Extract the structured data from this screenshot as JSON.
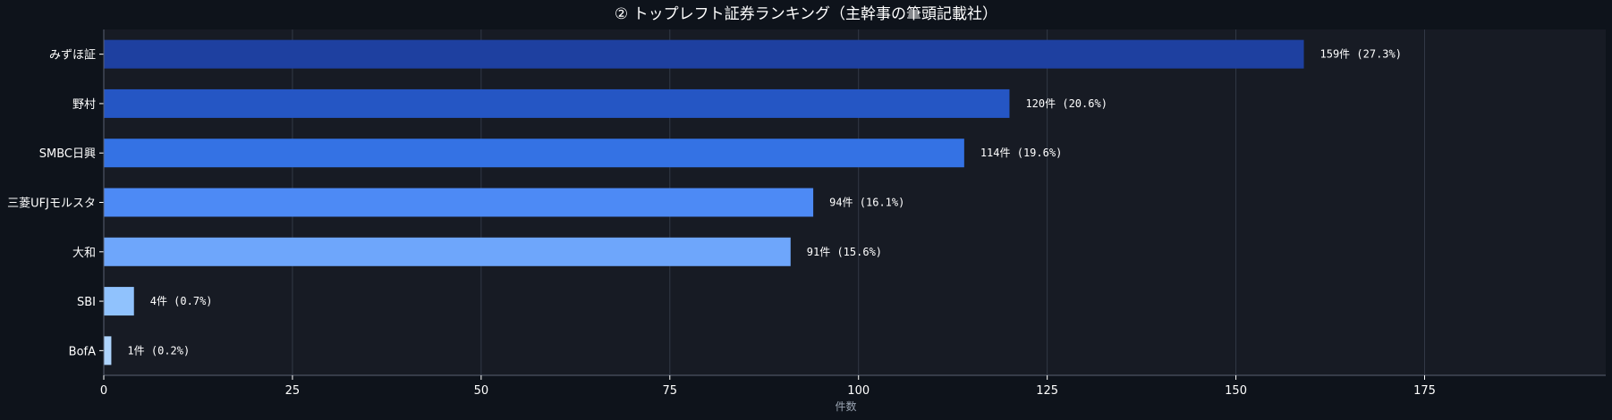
{
  "chart_data": {
    "type": "bar",
    "orientation": "horizontal",
    "title": "② トップレフト証券ランキング（主幹事の筆頭記載社）",
    "xlabel": "件数",
    "ylabel": "",
    "xlim": [
      0,
      199
    ],
    "x_ticks": [
      0,
      25,
      50,
      75,
      100,
      125,
      150,
      175
    ],
    "grid": "x",
    "legend": "none",
    "categories": [
      "みずほ証",
      "野村",
      "SMBC日興",
      "三菱UFJモルスタ",
      "大和",
      "SBI",
      "BofA"
    ],
    "values": [
      159,
      120,
      114,
      94,
      91,
      4,
      1
    ],
    "data_labels": [
      "159件 (27.3%)",
      "120件 (20.6%)",
      "114件 (19.6%)",
      "94件 (16.1%)",
      "91件 (15.6%)",
      "4件 (0.7%)",
      "1件 (0.2%)"
    ],
    "bar_colors": [
      "#1e40a0",
      "#2556c4",
      "#3472e4",
      "#4d8af5",
      "#6ea6fb",
      "#90c2fd",
      "#aed4fd"
    ]
  },
  "colors": {
    "page_background": "#0e131b",
    "plot_background": "#171b24",
    "grid": "#323846",
    "axis": "#5a6272",
    "text": "#ffffff",
    "axis_label": "#9aa4b2"
  }
}
